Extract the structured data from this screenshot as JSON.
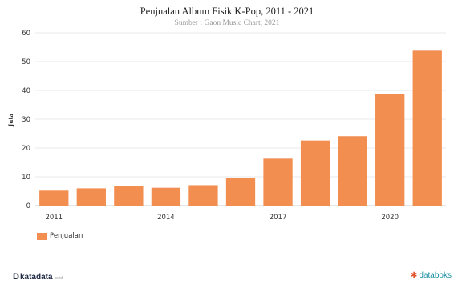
{
  "chart_data": {
    "type": "bar",
    "title": "Penjualan Album Fisik K-Pop, 2011 - 2021",
    "subtitle": "Sumber : Gaon Music Chart, 2021",
    "ylabel": "Juta",
    "categories": [
      "2011",
      "2012",
      "2013",
      "2014",
      "2015",
      "2016",
      "2017",
      "2018",
      "2019",
      "2020",
      "2021"
    ],
    "x_tick_labels": [
      "2011",
      "2014",
      "2017",
      "2020"
    ],
    "series": [
      {
        "name": "Penjualan",
        "values": [
          5.2,
          6.0,
          6.7,
          6.2,
          7.1,
          9.6,
          16.3,
          22.6,
          24.1,
          38.7,
          53.8
        ]
      }
    ],
    "ylim": [
      0,
      60
    ],
    "yticks": [
      0,
      10,
      20,
      30,
      40,
      50,
      60
    ],
    "grid": true,
    "legend_position": "bottom-left",
    "color": "#f28e50"
  },
  "legend": {
    "label": "Penjualan"
  },
  "branding": {
    "left_logo": "katadata",
    "left_logo_mark": "D",
    "left_logo_suffix": "co.id",
    "right_logo": "databoks",
    "right_logo_icon": "databoks-icon"
  }
}
